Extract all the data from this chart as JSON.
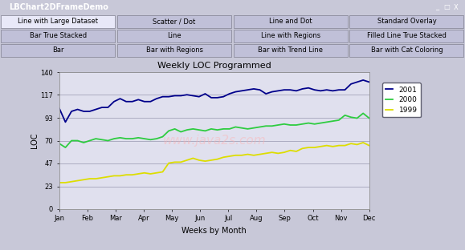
{
  "title": "Weekly LOC Programmed",
  "xlabel": "Weeks by Month",
  "ylabel": "LOC",
  "ylim": [
    0,
    140
  ],
  "yticks": [
    0,
    23,
    47,
    70,
    93,
    117,
    140
  ],
  "months": [
    "Jan",
    "Feb",
    "Mar",
    "Apr",
    "May",
    "Jun",
    "Jul",
    "Aug",
    "Sep",
    "Oct",
    "Nov",
    "Dec"
  ],
  "legend_labels": [
    "2001",
    "2000",
    "1999"
  ],
  "line_colors": [
    "#00008B",
    "#2ECC40",
    "#DDDD00"
  ],
  "bg_color": "#C8C8D8",
  "plot_bg": "#E0E0EE",
  "frame_bg": "#D4D4E8",
  "ui_bg": "#D0D0E0",
  "tab_selected_bg": "#E8E8F8",
  "tab_normal_bg": "#C0C0D8",
  "titlebar_bg": "#000080",
  "titlebar_text": "#FFFFFF",
  "series_2001": [
    103,
    89,
    100,
    102,
    100,
    100,
    102,
    104,
    104,
    110,
    113,
    110,
    110,
    112,
    110,
    110,
    113,
    115,
    115,
    116,
    116,
    117,
    116,
    115,
    118,
    114,
    114,
    115,
    118,
    120,
    121,
    122,
    123,
    122,
    118,
    120,
    121,
    122,
    122,
    121,
    123,
    124,
    122,
    121,
    122,
    121,
    122,
    122,
    128,
    130,
    132,
    130
  ],
  "series_2000": [
    67,
    63,
    70,
    70,
    68,
    70,
    72,
    71,
    70,
    72,
    73,
    72,
    72,
    73,
    72,
    71,
    72,
    74,
    80,
    82,
    79,
    81,
    82,
    81,
    80,
    82,
    81,
    82,
    82,
    84,
    83,
    82,
    83,
    84,
    85,
    85,
    86,
    87,
    86,
    86,
    87,
    88,
    87,
    88,
    89,
    90,
    91,
    96,
    94,
    93,
    98,
    93
  ],
  "series_1999": [
    27,
    27,
    28,
    29,
    30,
    31,
    31,
    32,
    33,
    34,
    34,
    35,
    35,
    36,
    37,
    36,
    37,
    38,
    47,
    48,
    48,
    50,
    52,
    50,
    49,
    50,
    51,
    53,
    54,
    55,
    55,
    56,
    55,
    56,
    57,
    58,
    57,
    58,
    60,
    59,
    62,
    63,
    63,
    64,
    65,
    64,
    65,
    65,
    67,
    66,
    68,
    65
  ],
  "tab_row1": [
    "Line with Large Dataset",
    "Scatter / Dot",
    "Line and Dot",
    "Standard Overlay"
  ],
  "tab_row2": [
    "Bar True Stacked",
    "Line",
    "Line with Regions",
    "Filled Line True Stacked"
  ],
  "tab_row3": [
    "Bar",
    "Bar with Regions",
    "Bar with Trend Line",
    "Bar with Cat Coloring"
  ],
  "watermark": "www.java2s.com"
}
